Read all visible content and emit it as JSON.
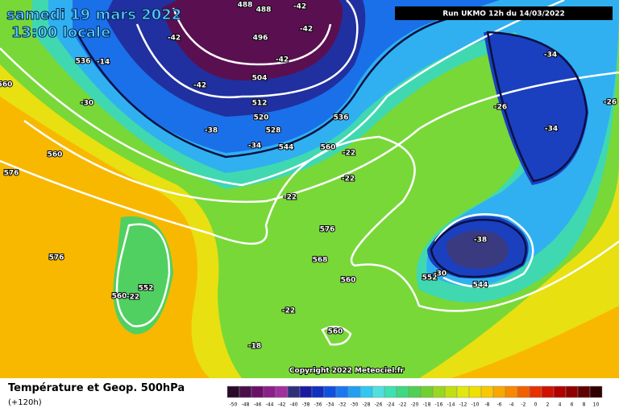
{
  "header": {
    "title": "samedi 19 mars 2022",
    "subtitle": "13:00 locale",
    "run": "Run UKMO 12h du 14/03/2022"
  },
  "map": {
    "copyright": "Copyright 2022 Meteociel.fr",
    "labels": [
      "488",
      "488",
      "-42",
      "-42",
      "-42",
      "496",
      "-42",
      "536",
      "-14",
      "504",
      "-42",
      "-30",
      "512",
      "520",
      "-38",
      "536",
      "528",
      "-34",
      "544",
      "560",
      "-22",
      "-22",
      "-22",
      "560",
      "576",
      "560",
      "-26",
      "-34",
      "-34",
      "-26",
      "576",
      "-38",
      "568",
      "552",
      "560",
      "-22",
      "576",
      "560",
      "552",
      "-30",
      "544",
      "-22",
      "560",
      "-18"
    ]
  },
  "footer": {
    "title": "Température et Geop. 500hPa",
    "lead": "(+120h)"
  },
  "legend": {
    "values": [
      -50,
      -48,
      -46,
      -44,
      -42,
      -40,
      -38,
      -36,
      -34,
      -32,
      -30,
      -28,
      -26,
      -24,
      -22,
      -20,
      -18,
      -16,
      -14,
      -12,
      -10,
      -8,
      -6,
      -4,
      -2,
      0,
      2,
      4,
      6,
      8,
      10
    ],
    "colors": [
      "#2a0a2a",
      "#4a104a",
      "#6a106a",
      "#8a208a",
      "#a030a0",
      "#30307a",
      "#1a1aa0",
      "#1030c0",
      "#1050e0",
      "#1a78f0",
      "#20a0f0",
      "#30c8f0",
      "#50e0e0",
      "#40e0b0",
      "#40d880",
      "#50d050",
      "#70d030",
      "#98d820",
      "#c0e010",
      "#e0e810",
      "#f0e000",
      "#f8c800",
      "#f8a800",
      "#f88800",
      "#f06000",
      "#e83000",
      "#d01000",
      "#b00000",
      "#900000",
      "#600000",
      "#300000"
    ]
  }
}
